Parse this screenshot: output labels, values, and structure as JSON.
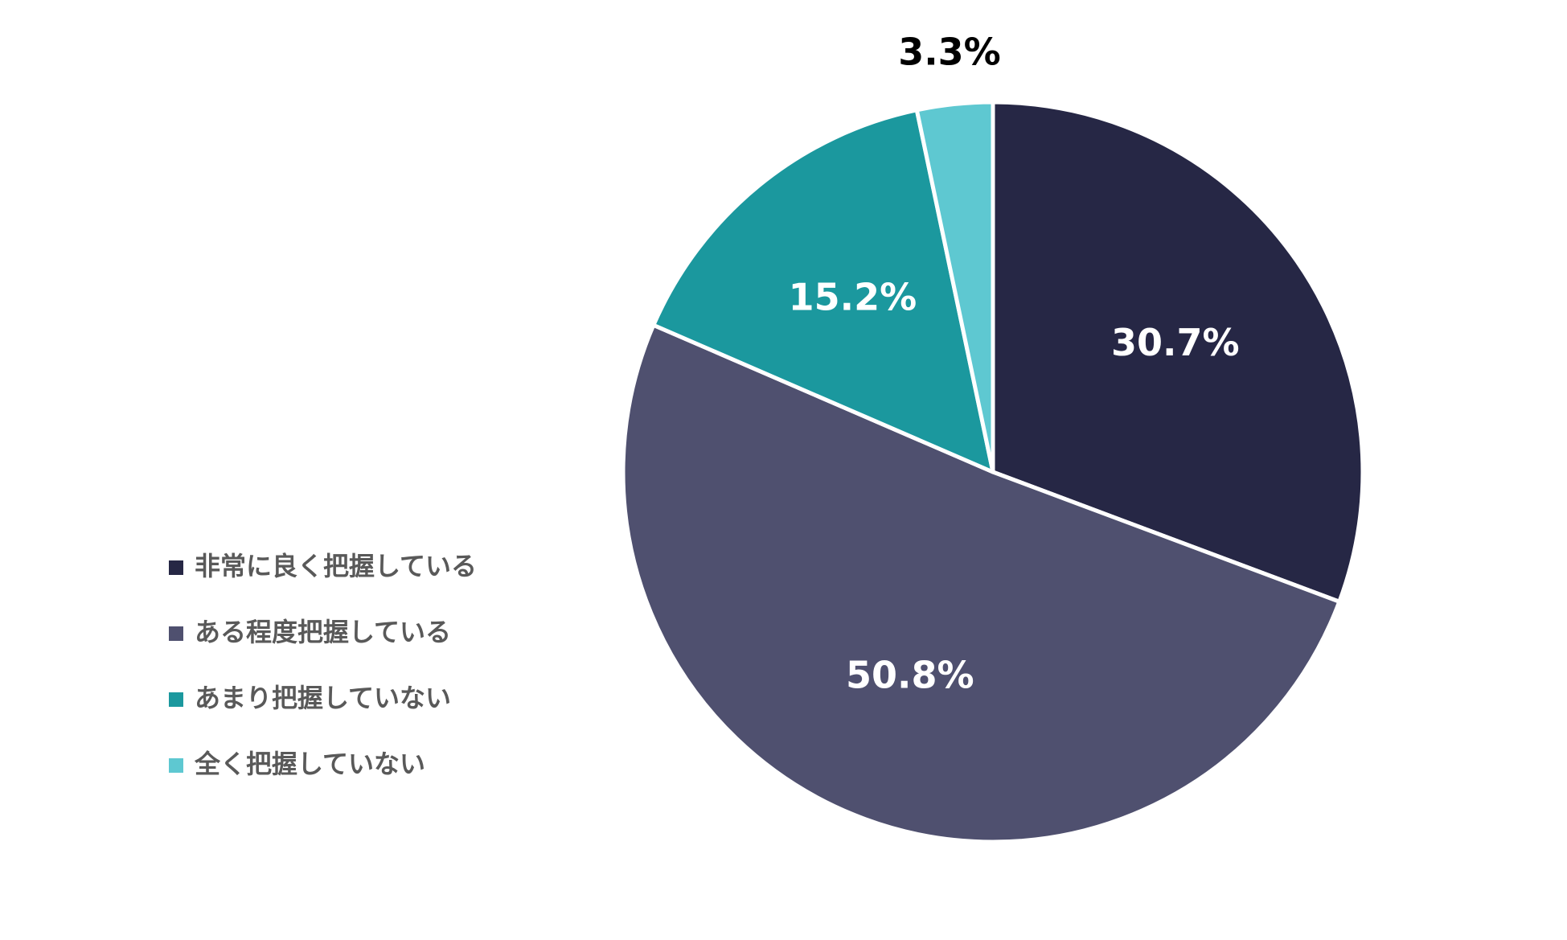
{
  "chart_data": {
    "type": "pie",
    "categories": [
      "非常に良く把握している",
      "ある程度把握している",
      "あまり把握していない",
      "全く把握していない"
    ],
    "values": [
      30.7,
      50.8,
      15.2,
      3.3
    ],
    "value_labels": [
      "30.7%",
      "50.8%",
      "15.2%",
      "3.3%"
    ],
    "colors": [
      "#262745",
      "#4f506f",
      "#1b989e",
      "#5ec8d1"
    ],
    "legend": "left"
  }
}
